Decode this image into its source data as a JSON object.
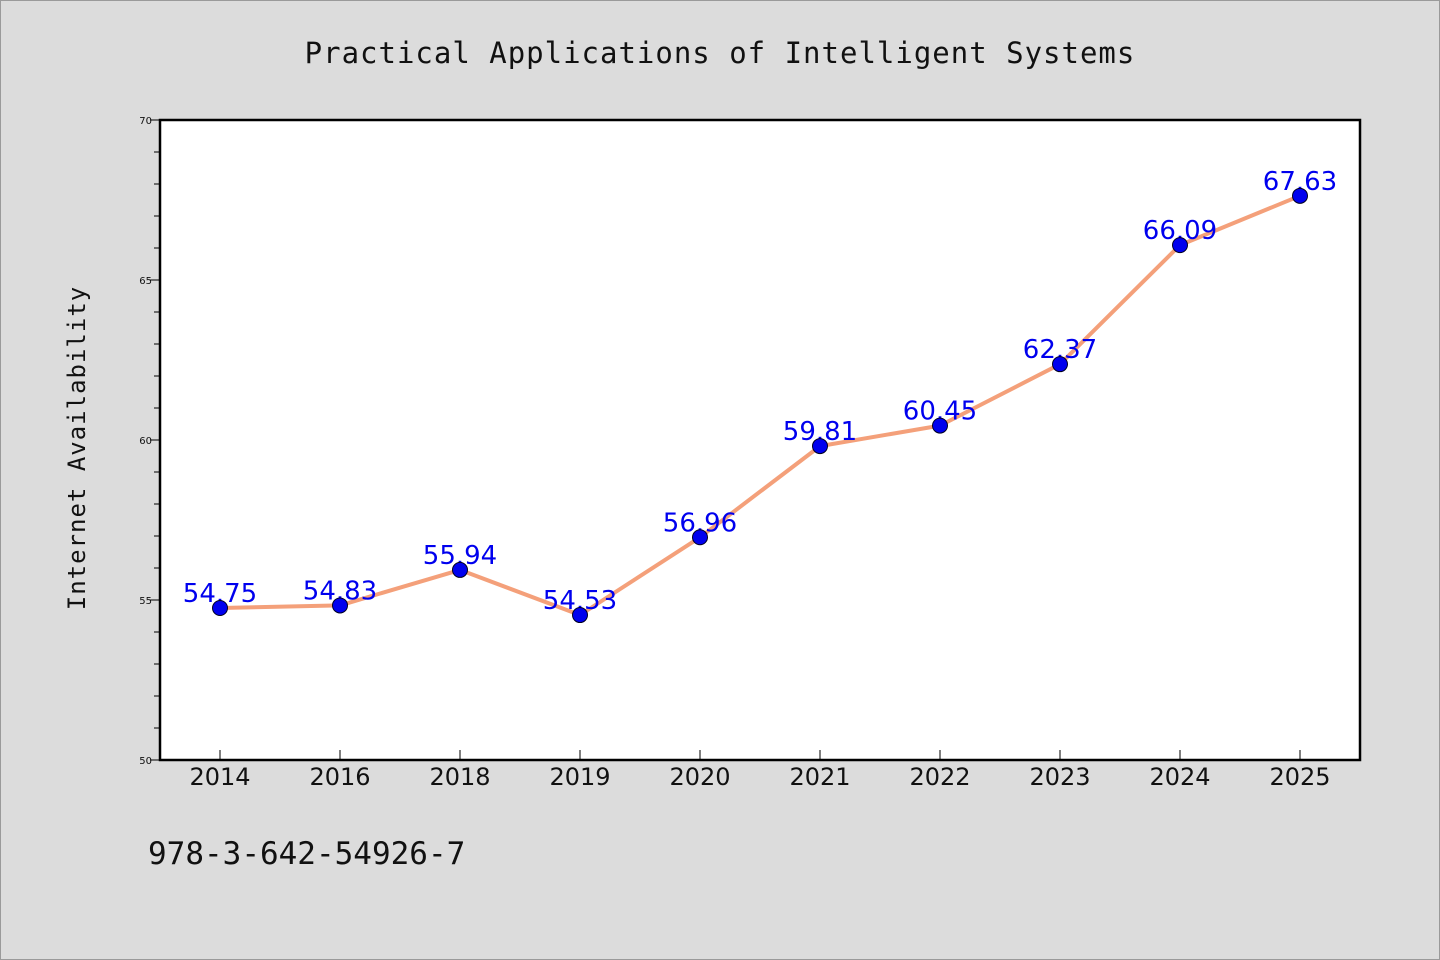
{
  "chart_data": {
    "type": "line",
    "title": "Practical Applications of Intelligent Systems",
    "xlabel": "",
    "ylabel": "Internet Availability",
    "categories": [
      "2014",
      "2016",
      "2018",
      "2019",
      "2020",
      "2021",
      "2022",
      "2023",
      "2024",
      "2025"
    ],
    "series": [
      {
        "values": [
          54.75,
          54.83,
          55.94,
          54.53,
          56.96,
          59.81,
          60.45,
          62.37,
          66.09,
          67.63
        ],
        "data_labels": [
          "54.75",
          "54.83",
          "55.94",
          "54.53",
          "56.96",
          "59.81",
          "60.45",
          "62.37",
          "66.09",
          "67.63"
        ],
        "line_color": "#f4a07a",
        "marker_color": "#0000ee"
      }
    ],
    "ylim": [
      50,
      70
    ],
    "yticks": [
      50,
      55,
      60,
      65,
      70
    ],
    "ytick_labels": [
      "50",
      "55",
      "60",
      "65",
      "70"
    ],
    "grid": false,
    "legend": "none"
  },
  "footer": {
    "isbn": "978-3-642-54926-7"
  },
  "colors": {
    "background": "#dcdcdc",
    "plot_background": "#ffffff",
    "line": "#f4a07a",
    "marker": "#0000ee",
    "data_label": "#0000ee"
  }
}
